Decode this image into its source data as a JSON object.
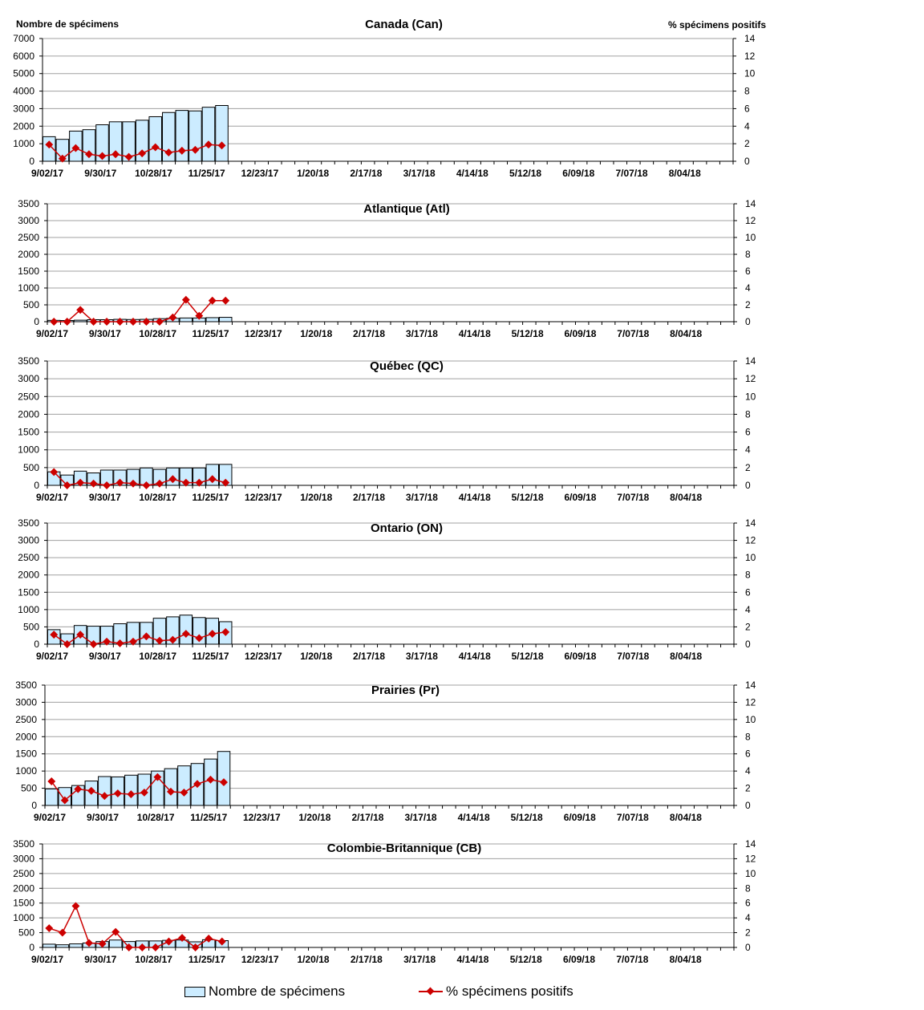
{
  "y_left_label": "Nombre de spécimens",
  "y_right_label": "% spécimens positifs",
  "legend": {
    "bars_label": "Nombre de spécimens",
    "line_label": "% spécimens positifs"
  },
  "colors": {
    "bar_fill": "#ccecff",
    "bar_stroke": "#000000",
    "line": "#cc0000",
    "grid": "#a0a0a0"
  },
  "chart_data": [
    {
      "type": "bar+line",
      "title": "Canada (Can)",
      "weeks": 52,
      "x_tick_labels": [
        "9/02/17",
        "9/30/17",
        "10/28/17",
        "11/25/17",
        "12/23/17",
        "1/20/18",
        "2/17/18",
        "3/17/18",
        "4/14/18",
        "5/12/18",
        "6/09/18",
        "7/07/18",
        "8/04/18"
      ],
      "x_tick_every": 4,
      "y_left_lim": [
        0,
        7000
      ],
      "y_left_ticks": [
        0,
        1000,
        2000,
        3000,
        4000,
        5000,
        6000,
        7000
      ],
      "y_right_lim": [
        0,
        14
      ],
      "y_right_ticks": [
        0,
        2,
        4,
        6,
        8,
        10,
        12,
        14
      ],
      "grid": true,
      "series": [
        {
          "name": "Nombre de spécimens",
          "kind": "bar",
          "values": [
            1400,
            1250,
            1720,
            1800,
            2080,
            2250,
            2250,
            2340,
            2540,
            2780,
            2900,
            2870,
            3080,
            3180
          ]
        },
        {
          "name": "% spécimens positifs",
          "kind": "line",
          "values": [
            1.9,
            0.3,
            1.5,
            0.8,
            0.6,
            0.8,
            0.5,
            0.9,
            1.6,
            1.0,
            1.2,
            1.3,
            1.9,
            1.8
          ]
        }
      ]
    },
    {
      "type": "bar+line",
      "title": "Atlantique (Atl)",
      "weeks": 52,
      "x_tick_labels": [
        "9/02/17",
        "9/30/17",
        "10/28/17",
        "11/25/17",
        "12/23/17",
        "1/20/18",
        "2/17/18",
        "3/17/18",
        "4/14/18",
        "5/12/18",
        "6/09/18",
        "7/07/18",
        "8/04/18"
      ],
      "x_tick_every": 4,
      "y_left_lim": [
        0,
        3500
      ],
      "y_left_ticks": [
        0,
        500,
        1000,
        1500,
        2000,
        2500,
        3000,
        3500
      ],
      "y_right_lim": [
        0,
        14
      ],
      "y_right_ticks": [
        0,
        2,
        4,
        6,
        8,
        10,
        12,
        14
      ],
      "grid": true,
      "series": [
        {
          "name": "Nombre de spécimens",
          "kind": "bar",
          "values": [
            40,
            35,
            45,
            60,
            60,
            70,
            65,
            70,
            90,
            100,
            110,
            110,
            120,
            130
          ]
        },
        {
          "name": "% spécimens positifs",
          "kind": "line",
          "values": [
            0.0,
            0.0,
            1.4,
            0.0,
            0.0,
            0.0,
            0.0,
            0.0,
            0.0,
            0.5,
            2.6,
            0.7,
            2.5,
            2.5
          ]
        }
      ]
    },
    {
      "type": "bar+line",
      "title": "Québec (QC)",
      "weeks": 52,
      "x_tick_labels": [
        "9/02/17",
        "9/30/17",
        "10/28/17",
        "11/25/17",
        "12/23/17",
        "1/20/18",
        "2/17/18",
        "3/17/18",
        "4/14/18",
        "5/12/18",
        "6/09/18",
        "7/07/18",
        "8/04/18"
      ],
      "x_tick_every": 4,
      "y_left_lim": [
        0,
        3500
      ],
      "y_left_ticks": [
        0,
        500,
        1000,
        1500,
        2000,
        2500,
        3000,
        3500
      ],
      "y_right_lim": [
        0,
        14
      ],
      "y_right_ticks": [
        0,
        2,
        4,
        6,
        8,
        10,
        12,
        14
      ],
      "grid": true,
      "series": [
        {
          "name": "Nombre de spécimens",
          "kind": "bar",
          "values": [
            380,
            290,
            400,
            350,
            430,
            430,
            450,
            490,
            450,
            490,
            490,
            490,
            590,
            590
          ]
        },
        {
          "name": "% spécimens positifs",
          "kind": "line",
          "values": [
            1.5,
            0.0,
            0.3,
            0.2,
            0.0,
            0.3,
            0.2,
            0.0,
            0.2,
            0.7,
            0.3,
            0.3,
            0.7,
            0.3
          ]
        }
      ]
    },
    {
      "type": "bar+line",
      "title": "Ontario (ON)",
      "weeks": 52,
      "x_tick_labels": [
        "9/02/17",
        "9/30/17",
        "10/28/17",
        "11/25/17",
        "12/23/17",
        "1/20/18",
        "2/17/18",
        "3/17/18",
        "4/14/18",
        "5/12/18",
        "6/09/18",
        "7/07/18",
        "8/04/18"
      ],
      "x_tick_every": 4,
      "y_left_lim": [
        0,
        3500
      ],
      "y_left_ticks": [
        0,
        500,
        1000,
        1500,
        2000,
        2500,
        3000,
        3500
      ],
      "y_right_lim": [
        0,
        14
      ],
      "y_right_ticks": [
        0,
        2,
        4,
        6,
        8,
        10,
        12,
        14
      ],
      "grid": true,
      "series": [
        {
          "name": "Nombre de spécimens",
          "kind": "bar",
          "values": [
            420,
            300,
            540,
            520,
            520,
            590,
            630,
            630,
            750,
            790,
            840,
            770,
            750,
            650
          ]
        },
        {
          "name": "% spécimens positifs",
          "kind": "line",
          "values": [
            1.1,
            0.0,
            1.1,
            0.0,
            0.3,
            0.1,
            0.3,
            0.9,
            0.4,
            0.5,
            1.2,
            0.7,
            1.2,
            1.4
          ]
        }
      ]
    },
    {
      "type": "bar+line",
      "title": "Prairies (Pr)",
      "weeks": 52,
      "x_tick_labels": [
        "9/02/17",
        "9/30/17",
        "10/28/17",
        "11/25/17",
        "12/23/17",
        "1/20/18",
        "2/17/18",
        "3/17/18",
        "4/14/18",
        "5/12/18",
        "6/09/18",
        "7/07/18",
        "8/04/18"
      ],
      "x_tick_every": 4,
      "y_left_lim": [
        0,
        3500
      ],
      "y_left_ticks": [
        0,
        500,
        1000,
        1500,
        2000,
        2500,
        3000,
        3500
      ],
      "y_right_lim": [
        0,
        14
      ],
      "y_right_ticks": [
        0,
        2,
        4,
        6,
        8,
        10,
        12,
        14
      ],
      "grid": true,
      "series": [
        {
          "name": "Nombre de spécimens",
          "kind": "bar",
          "values": [
            480,
            520,
            580,
            710,
            840,
            830,
            880,
            910,
            1000,
            1070,
            1150,
            1220,
            1350,
            1570
          ]
        },
        {
          "name": "% spécimens positifs",
          "kind": "line",
          "values": [
            2.8,
            0.6,
            1.9,
            1.7,
            1.1,
            1.4,
            1.3,
            1.5,
            3.3,
            1.6,
            1.5,
            2.5,
            3.0,
            2.7
          ]
        }
      ]
    },
    {
      "type": "bar+line",
      "title": "Colombie-Britannique (CB)",
      "weeks": 52,
      "x_tick_labels": [
        "9/02/17",
        "9/30/17",
        "10/28/17",
        "11/25/17",
        "12/23/17",
        "1/20/18",
        "2/17/18",
        "3/17/18",
        "4/14/18",
        "5/12/18",
        "6/09/18",
        "7/07/18",
        "8/04/18"
      ],
      "x_tick_every": 4,
      "y_left_lim": [
        0,
        3500
      ],
      "y_left_ticks": [
        0,
        500,
        1000,
        1500,
        2000,
        2500,
        3000,
        3500
      ],
      "y_right_lim": [
        0,
        14
      ],
      "y_right_ticks": [
        0,
        2,
        4,
        6,
        8,
        10,
        12,
        14
      ],
      "grid": true,
      "series": [
        {
          "name": "Nombre de spécimens",
          "kind": "bar",
          "values": [
            110,
            90,
            120,
            150,
            200,
            250,
            200,
            220,
            220,
            240,
            250,
            190,
            260,
            230
          ]
        },
        {
          "name": "% spécimens positifs",
          "kind": "line",
          "values": [
            2.6,
            2.0,
            5.6,
            0.6,
            0.5,
            2.1,
            0.0,
            0.0,
            0.0,
            0.8,
            1.3,
            0.0,
            1.2,
            0.8
          ]
        }
      ]
    }
  ]
}
